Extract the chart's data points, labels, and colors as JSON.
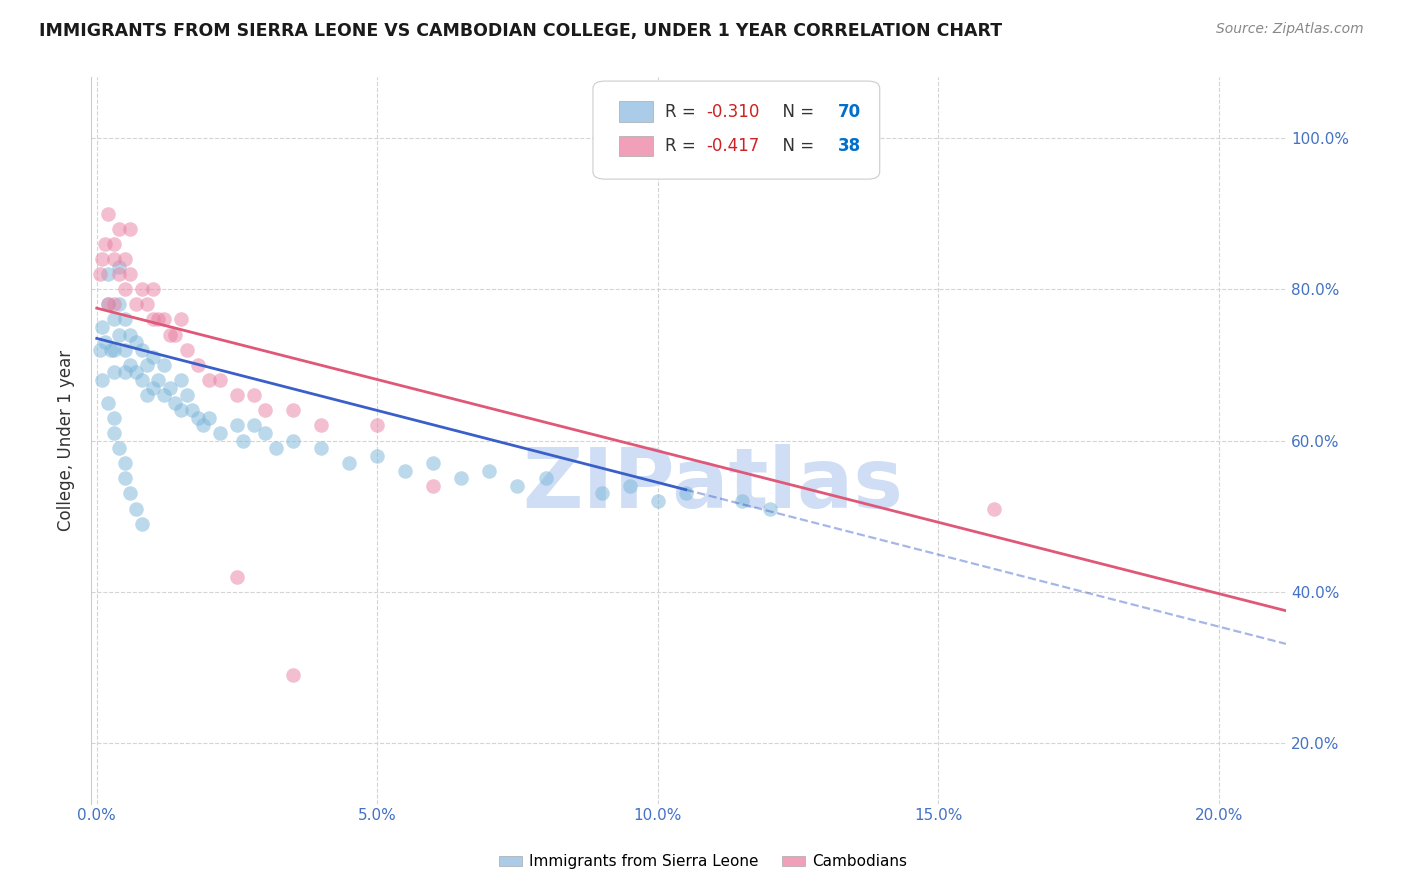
{
  "title": "IMMIGRANTS FROM SIERRA LEONE VS CAMBODIAN COLLEGE, UNDER 1 YEAR CORRELATION CHART",
  "source_text": "Source: ZipAtlas.com",
  "ylabel": "College, Under 1 year",
  "right_yticks": [
    0.2,
    0.4,
    0.6,
    0.8,
    1.0
  ],
  "right_yticklabels": [
    "20.0%",
    "40.0%",
    "60.0%",
    "80.0%",
    "100.0%"
  ],
  "xticks": [
    0.0,
    0.05,
    0.1,
    0.15,
    0.2
  ],
  "xticklabels": [
    "0.0%",
    "5.0%",
    "10.0%",
    "15.0%",
    "20.0%"
  ],
  "xlim": [
    -0.001,
    0.212
  ],
  "ylim": [
    0.12,
    1.08
  ],
  "sl_color": "#7ab5d8",
  "cam_color": "#e87fa0",
  "trend_sl_color": "#3a5fc8",
  "trend_cam_color": "#e05878",
  "sl_alpha": 0.5,
  "cam_alpha": 0.5,
  "dot_size": 110,
  "scatter_sl_x": [
    0.0005,
    0.001,
    0.0015,
    0.002,
    0.002,
    0.0025,
    0.003,
    0.003,
    0.003,
    0.004,
    0.004,
    0.004,
    0.005,
    0.005,
    0.005,
    0.006,
    0.006,
    0.007,
    0.007,
    0.008,
    0.008,
    0.009,
    0.009,
    0.01,
    0.01,
    0.011,
    0.012,
    0.012,
    0.013,
    0.014,
    0.015,
    0.015,
    0.016,
    0.017,
    0.018,
    0.019,
    0.02,
    0.022,
    0.025,
    0.026,
    0.028,
    0.03,
    0.032,
    0.035,
    0.04,
    0.045,
    0.05,
    0.055,
    0.06,
    0.065,
    0.07,
    0.075,
    0.08,
    0.09,
    0.095,
    0.1,
    0.105,
    0.115,
    0.12,
    0.001,
    0.002,
    0.003,
    0.003,
    0.004,
    0.005,
    0.005,
    0.006,
    0.007,
    0.008
  ],
  "scatter_sl_y": [
    0.72,
    0.75,
    0.73,
    0.82,
    0.78,
    0.72,
    0.76,
    0.72,
    0.69,
    0.83,
    0.78,
    0.74,
    0.76,
    0.72,
    0.69,
    0.74,
    0.7,
    0.73,
    0.69,
    0.72,
    0.68,
    0.7,
    0.66,
    0.71,
    0.67,
    0.68,
    0.7,
    0.66,
    0.67,
    0.65,
    0.68,
    0.64,
    0.66,
    0.64,
    0.63,
    0.62,
    0.63,
    0.61,
    0.62,
    0.6,
    0.62,
    0.61,
    0.59,
    0.6,
    0.59,
    0.57,
    0.58,
    0.56,
    0.57,
    0.55,
    0.56,
    0.54,
    0.55,
    0.53,
    0.54,
    0.52,
    0.53,
    0.52,
    0.51,
    0.68,
    0.65,
    0.63,
    0.61,
    0.59,
    0.57,
    0.55,
    0.53,
    0.51,
    0.49
  ],
  "scatter_cam_x": [
    0.0005,
    0.001,
    0.0015,
    0.002,
    0.002,
    0.003,
    0.003,
    0.003,
    0.004,
    0.004,
    0.005,
    0.005,
    0.006,
    0.006,
    0.007,
    0.008,
    0.009,
    0.01,
    0.01,
    0.011,
    0.012,
    0.013,
    0.014,
    0.015,
    0.016,
    0.018,
    0.02,
    0.022,
    0.025,
    0.028,
    0.03,
    0.035,
    0.04,
    0.05,
    0.06,
    0.16,
    0.025,
    0.035
  ],
  "scatter_cam_y": [
    0.82,
    0.84,
    0.86,
    0.78,
    0.9,
    0.78,
    0.84,
    0.86,
    0.82,
    0.88,
    0.8,
    0.84,
    0.82,
    0.88,
    0.78,
    0.8,
    0.78,
    0.76,
    0.8,
    0.76,
    0.76,
    0.74,
    0.74,
    0.76,
    0.72,
    0.7,
    0.68,
    0.68,
    0.66,
    0.66,
    0.64,
    0.64,
    0.62,
    0.62,
    0.54,
    0.51,
    0.42,
    0.29
  ],
  "trend_sl_x0": 0.0,
  "trend_sl_y0": 0.735,
  "trend_sl_x1": 0.105,
  "trend_sl_y1": 0.535,
  "trend_sl_dash_x0": 0.105,
  "trend_sl_dash_x1": 0.212,
  "trend_cam_x0": 0.0,
  "trend_cam_y0": 0.775,
  "trend_cam_x1": 0.212,
  "trend_cam_y1": 0.375,
  "grid_color": "#d0d0d0",
  "background_color": "#ffffff",
  "tick_color": "#4472c4",
  "title_color": "#1a1a1a",
  "source_color": "#888888",
  "watermark_text": "ZIPatlas",
  "watermark_color": "#d0def5",
  "legend_box_color_sl": "#aacce8",
  "legend_box_color_cam": "#f0a0b8",
  "legend_r_color": "#cc0000",
  "legend_n_color": "#0070c0"
}
